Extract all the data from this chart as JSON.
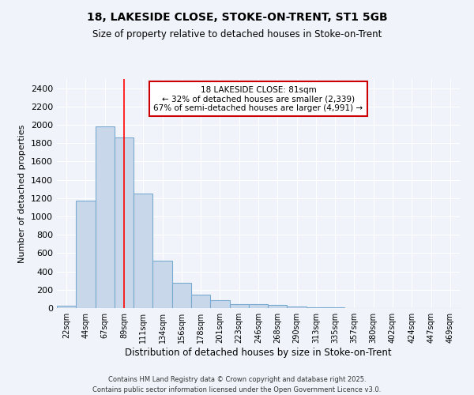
{
  "title_line1": "18, LAKESIDE CLOSE, STOKE-ON-TRENT, ST1 5GB",
  "title_line2": "Size of property relative to detached houses in Stoke-on-Trent",
  "xlabel": "Distribution of detached houses by size in Stoke-on-Trent",
  "ylabel": "Number of detached properties",
  "annotation_title": "18 LAKESIDE CLOSE: 81sqm",
  "annotation_line2": "← 32% of detached houses are smaller (2,339)",
  "annotation_line3": "67% of semi-detached houses are larger (4,991) →",
  "categories": [
    "22sqm",
    "44sqm",
    "67sqm",
    "89sqm",
    "111sqm",
    "134sqm",
    "156sqm",
    "178sqm",
    "201sqm",
    "223sqm",
    "246sqm",
    "268sqm",
    "290sqm",
    "313sqm",
    "335sqm",
    "357sqm",
    "380sqm",
    "402sqm",
    "424sqm",
    "447sqm",
    "469sqm"
  ],
  "values": [
    25,
    1170,
    1980,
    1860,
    1250,
    520,
    275,
    150,
    90,
    45,
    40,
    35,
    20,
    10,
    5,
    4,
    3,
    2,
    2,
    2,
    2
  ],
  "bar_color": "#c8d8ea",
  "bar_edge_color": "#7aaad0",
  "red_line_index": 3,
  "ylim": [
    0,
    2500
  ],
  "yticks": [
    0,
    200,
    400,
    600,
    800,
    1000,
    1200,
    1400,
    1600,
    1800,
    2000,
    2200,
    2400
  ],
  "bg_color": "#f0f4fa",
  "plot_bg_color": "#f0f4fa",
  "grid_color": "#ffffff",
  "annotation_box_color": "#ffffff",
  "annotation_box_edge": "#cc0000",
  "footer_line1": "Contains HM Land Registry data © Crown copyright and database right 2025.",
  "footer_line2": "Contains public sector information licensed under the Open Government Licence v3.0."
}
